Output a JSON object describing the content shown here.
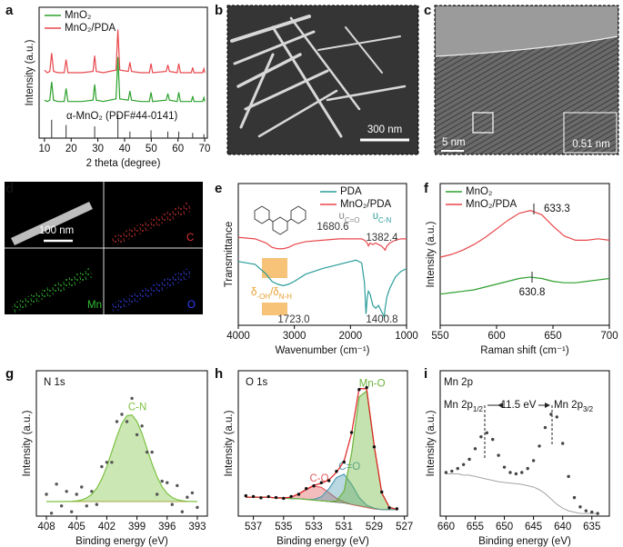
{
  "chart_data": [
    {
      "panel": "a",
      "type": "line",
      "xlabel": "2 theta (degree)",
      "ylabel": "Intensity (a.u.)",
      "xlim": [
        8,
        71
      ],
      "xticks": [
        10,
        20,
        30,
        40,
        50,
        60,
        70
      ],
      "ylim": [
        0,
        100
      ],
      "legend": "upper left",
      "x": [
        10,
        11,
        12,
        12.7,
        13.4,
        15,
        17.4,
        18.1,
        18.8,
        22,
        24,
        28.2,
        28.8,
        29.4,
        32,
        36.8,
        37.5,
        38.2,
        41.4,
        42,
        42.6,
        46,
        49.3,
        49.9,
        50.5,
        55.6,
        56.2,
        56.8,
        59.7,
        60.3,
        60.9,
        65,
        65.5,
        66,
        69.2,
        69.7,
        70
      ],
      "series": [
        {
          "name": "MnO₂",
          "color": "#2ca02c",
          "style": "line",
          "values": [
            29,
            28,
            29,
            43,
            29,
            28,
            28,
            38,
            28,
            28,
            28,
            29,
            41,
            29,
            28,
            30,
            62,
            30,
            29,
            36,
            29,
            28,
            28,
            35,
            28,
            29,
            34,
            29,
            28,
            35,
            28,
            28,
            32,
            28,
            28,
            31,
            28
          ]
        },
        {
          "name": "MnO₂/PDA",
          "color": "#e8474c",
          "style": "line",
          "values": [
            52,
            50,
            51,
            65,
            51,
            50,
            50,
            60,
            50,
            50,
            50,
            51,
            63,
            51,
            50,
            52,
            83,
            52,
            51,
            58,
            51,
            50,
            50,
            57,
            50,
            51,
            56,
            51,
            50,
            57,
            50,
            50,
            54,
            50,
            50,
            53,
            50
          ]
        }
      ],
      "reference": {
        "label": "α-MnO₂ (PDF#44-0141)",
        "color": "#333333",
        "x": [
          12.7,
          18.1,
          28.8,
          37.5,
          42,
          49.9,
          56.2,
          60.3,
          65.5,
          69.7
        ],
        "values": [
          14,
          10,
          9,
          18,
          5,
          6,
          5,
          5,
          4,
          3
        ]
      }
    },
    {
      "panel": "e",
      "type": "line",
      "xlabel": "Wavenumber (cm⁻¹)",
      "ylabel": "Transmittance",
      "xlim": [
        4000,
        1000
      ],
      "xticks": [
        4000,
        3000,
        2000,
        1000
      ],
      "ylim": [
        0,
        100
      ],
      "legend": "upper right",
      "x": [
        4000,
        3700,
        3500,
        3400,
        3300,
        3200,
        3100,
        3000,
        2800,
        2500,
        2200,
        2000,
        1900,
        1800,
        1750,
        1723,
        1700,
        1680,
        1650,
        1600,
        1550,
        1500,
        1450,
        1400,
        1382,
        1350,
        1300,
        1200,
        1100,
        1000
      ],
      "series": [
        {
          "name": "PDA",
          "color": "#2a9d9a",
          "style": "line",
          "values": [
            45,
            43,
            36,
            31,
            29,
            28,
            29,
            31,
            36,
            40,
            43,
            45,
            46,
            44,
            30,
            8,
            20,
            24,
            22,
            14,
            12,
            14,
            10,
            6,
            12,
            20,
            26,
            34,
            38,
            40
          ]
        },
        {
          "name": "MnO₂/PDA",
          "color": "#e8474c",
          "style": "line",
          "values": [
            62,
            61,
            58,
            55,
            54,
            54,
            55,
            57,
            59,
            60,
            61,
            61,
            61,
            61,
            60,
            59,
            58,
            56,
            58,
            57,
            58,
            57,
            56,
            54,
            53,
            56,
            58,
            60,
            61,
            61
          ]
        }
      ],
      "annotations": [
        [
          "1680.6"
        ],
        [
          "1382.4"
        ],
        [
          "1723.0"
        ],
        [
          "1400.8"
        ],
        [
          "υ",
          "C=O"
        ],
        [
          "υ",
          "C-N"
        ],
        [
          "δ",
          "-OH",
          "/δ",
          "N-H"
        ]
      ]
    },
    {
      "panel": "f",
      "type": "line",
      "xlabel": "Raman shift (cm⁻¹)",
      "ylabel": "Intensity (a.u.)",
      "xlim": [
        550,
        700
      ],
      "xticks": [
        550,
        600,
        650,
        700
      ],
      "ylim": [
        0,
        100
      ],
      "legend": "upper left",
      "x": [
        550,
        560,
        570,
        580,
        590,
        600,
        610,
        620,
        630,
        640,
        650,
        660,
        670,
        680,
        690,
        700
      ],
      "series": [
        {
          "name": "MnO₂",
          "color": "#2ca02c",
          "style": "line",
          "values": [
            22,
            23,
            24,
            25,
            27,
            29,
            31,
            33,
            34,
            33,
            31,
            30,
            30,
            31,
            32,
            33
          ]
        },
        {
          "name": "MnO₂/PDA",
          "color": "#e8474c",
          "style": "line",
          "values": [
            48,
            50,
            53,
            57,
            62,
            68,
            74,
            79,
            81,
            78,
            70,
            63,
            60,
            60,
            61,
            60
          ]
        }
      ],
      "annotations": [
        [
          "633.3"
        ],
        [
          "630.8"
        ]
      ]
    },
    {
      "panel": "g",
      "type": "line",
      "xlabel": "Binding energy (eV)",
      "ylabel": "Intensity (a.u.)",
      "xlim": [
        409,
        392
      ],
      "xticks": [
        408,
        405,
        402,
        399,
        396,
        393
      ],
      "ylim": [
        0,
        100
      ],
      "x": [
        408,
        407.5,
        407,
        406.5,
        406,
        405.5,
        405,
        404.5,
        404,
        403.5,
        403,
        402.5,
        402,
        401.5,
        401,
        400.5,
        400,
        399.5,
        399,
        398.5,
        398,
        397.5,
        397,
        396.5,
        396,
        395.5,
        395,
        394.5,
        394,
        393.5,
        393
      ],
      "series": [
        {
          "color": "#b5a642",
          "style": "background",
          "values": [
            10,
            10,
            10,
            10,
            10,
            10,
            10,
            10,
            10,
            10,
            10,
            10,
            10,
            10,
            10,
            10,
            10,
            10,
            10,
            10,
            10,
            10,
            10,
            10,
            10,
            10,
            10,
            10,
            10,
            10,
            10
          ]
        },
        {
          "name": "C-N",
          "color": "#7cc242",
          "style": "area",
          "values": [
            10,
            10,
            10,
            10,
            10.1,
            10.2,
            10.5,
            11.1,
            12.5,
            14.9,
            19.1,
            25.5,
            34,
            44.3,
            54.8,
            63.7,
            69,
            69.6,
            65.1,
            56.8,
            46.4,
            36,
            27,
            20.2,
            15.6,
            12.8,
            11.3,
            10.6,
            10.2,
            10.1,
            10
          ]
        },
        {
          "color": "#555555",
          "style": "dots",
          "values": [
            15,
            2,
            22,
            7,
            17,
            3,
            15,
            20,
            7,
            17,
            8,
            34,
            37,
            37,
            65,
            70,
            65,
            81,
            56,
            62,
            44,
            44,
            15,
            24,
            23,
            8,
            21,
            3,
            13,
            16,
            6
          ]
        }
      ],
      "annotations": [
        [
          "N 1s"
        ]
      ]
    },
    {
      "panel": "h",
      "type": "line",
      "xlabel": "Binding energy (eV)",
      "ylabel": "Intensity (a.u.)",
      "xlim": [
        538,
        526.8
      ],
      "xticks": [
        537,
        535,
        533,
        531,
        529,
        527
      ],
      "ylim": [
        0,
        100
      ],
      "x": [
        537.5,
        537,
        536.5,
        536,
        535.5,
        535,
        534.5,
        534,
        533.5,
        533,
        532.5,
        532,
        531.5,
        531,
        530.5,
        530,
        529.5,
        529,
        528.5,
        528,
        527.5
      ],
      "series": [
        {
          "color": "#666666",
          "style": "background",
          "values": [
            13,
            13,
            13,
            13,
            12.5,
            12.5,
            12,
            12,
            11.5,
            11,
            10.5,
            10,
            9.5,
            9,
            8,
            7,
            6,
            5,
            4.5,
            4.5,
            4.5
          ]
        },
        {
          "name": "C-O",
          "color": "#e05a5a",
          "style": "area",
          "values": [
            13,
            13,
            13,
            13,
            12.5,
            12.5,
            13,
            15.3,
            18.3,
            20.7,
            19.8,
            16.1,
            12.2,
            9.8,
            8,
            7,
            6,
            5,
            4.5,
            4.5,
            4.5
          ]
        },
        {
          "name": "C=O",
          "color": "#4f9db3",
          "style": "area",
          "values": [
            13,
            13,
            13,
            13,
            12.5,
            12.5,
            12,
            12,
            11.6,
            11.5,
            13.2,
            18.8,
            26.5,
            28.8,
            21.8,
            12.8,
            7.5,
            5.4,
            4.5,
            4.5,
            4.5
          ]
        },
        {
          "name": "Mn-O",
          "color": "#6cb33a",
          "style": "area",
          "values": [
            13,
            13,
            13,
            13,
            12.5,
            12.5,
            12,
            12,
            11.5,
            11,
            10.5,
            10.1,
            10.4,
            17.2,
            43,
            82,
            86,
            48,
            16,
            6.1,
            4.6
          ]
        },
        {
          "color": "#e02020",
          "style": "line",
          "values": [
            13,
            13,
            13,
            13,
            12.5,
            12.5,
            13,
            15.3,
            18.4,
            21.2,
            22.5,
            24.9,
            30.1,
            37.8,
            56.8,
            87.8,
            87.5,
            48.3,
            16,
            6.1,
            4.6
          ]
        },
        {
          "color": "#111111",
          "style": "dots",
          "values": [
            14,
            13.5,
            12.6,
            13.4,
            12.8,
            12.2,
            13.5,
            15,
            18.9,
            20.8,
            23,
            24.4,
            30.8,
            37.2,
            57.5,
            87,
            88.4,
            47.6,
            16.6,
            5.7,
            5
          ]
        }
      ],
      "annotations": [
        [
          "O 1s"
        ]
      ]
    },
    {
      "panel": "i",
      "type": "line",
      "xlabel": "Binding energy (eV)",
      "ylabel": "Intensity (a.u.)",
      "xlim": [
        661,
        632
      ],
      "xticks": [
        660,
        655,
        650,
        645,
        640,
        635
      ],
      "ylim": [
        0,
        110
      ],
      "x": [
        660,
        659,
        658,
        657,
        656,
        655,
        654,
        653,
        652,
        651,
        650,
        649,
        648,
        647,
        646,
        645,
        644,
        643,
        642,
        641,
        640,
        639,
        638,
        637,
        636,
        635,
        634
      ],
      "series": [
        {
          "color": "#999999",
          "style": "background",
          "values": [
            32,
            32,
            32,
            31,
            31,
            30,
            29,
            28,
            27,
            26,
            25.5,
            25,
            24.5,
            24,
            23,
            22,
            20,
            17,
            13,
            9,
            6,
            4,
            3,
            2,
            2,
            2,
            2
          ]
        },
        {
          "color": "#444444",
          "style": "dots",
          "values": [
            33,
            34,
            36,
            39,
            43,
            51,
            60,
            63,
            58,
            46,
            37,
            33,
            32,
            33,
            36,
            42,
            53,
            67,
            77,
            75,
            55,
            30,
            14,
            7,
            4,
            3,
            2
          ]
        }
      ],
      "annotations": [
        [
          "Mn 2p"
        ],
        [
          "Mn 2p",
          "1/2"
        ],
        [
          "11.5 eV"
        ],
        [
          "Mn 2p",
          "3/2"
        ]
      ]
    }
  ],
  "images": [
    {
      "panel": "b",
      "labels": [
        "300 nm"
      ]
    },
    {
      "panel": "c",
      "labels": [
        "5 nm",
        "0.51 nm"
      ]
    },
    {
      "panel": "d",
      "labels": [
        "100 nm",
        "C",
        "Mn",
        "O"
      ]
    }
  ]
}
